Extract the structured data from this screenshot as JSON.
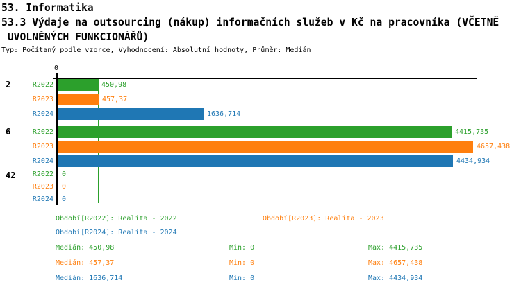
{
  "header": {
    "line1": "53. Informatika",
    "line2": "53.3 Výdaje na outsourcing (nákup) informačních služeb v Kč na pracovníka (VČETNĚ",
    "line3": " UVOLNĚNÝCH FUNKCIONÁŘŮ)",
    "meta": "Typ: Počítaný podle vzorce, Vyhodnocení: Absolutní hodnoty, Průměr: Medián"
  },
  "colors": {
    "r2022": "#2ca02c",
    "r2023": "#ff7f0e",
    "r2024": "#1f77b4",
    "axis": "#000000",
    "background": "#ffffff"
  },
  "chart_data": {
    "type": "bar",
    "orientation": "horizontal",
    "title": "53.3 Výdaje na outsourcing (nákup) informačních služeb v Kč na pracovníka (VČETNĚ UVOLNĚNÝCH FUNKCIONÁŘŮ)",
    "subtitle": "Typ: Počítaný podle vzorce, Vyhodnocení: Absolutní hodnoty, Průměr: Medián",
    "categories": [
      "2",
      "6",
      "42"
    ],
    "series": [
      {
        "name": "R2022",
        "period": "Realita - 2022",
        "color": "#2ca02c",
        "values": [
          450.98,
          4415.735,
          0
        ],
        "value_labels": [
          "450,98",
          "4415,735",
          "0"
        ],
        "median": 450.98,
        "min": 0,
        "max": 4415.735
      },
      {
        "name": "R2023",
        "period": "Realita - 2023",
        "color": "#ff7f0e",
        "values": [
          457.37,
          4657.438,
          0
        ],
        "value_labels": [
          "457,37",
          "4657,438",
          "0"
        ],
        "median": 457.37,
        "min": 0,
        "max": 4657.438
      },
      {
        "name": "R2024",
        "period": "Realita - 2024",
        "color": "#1f77b4",
        "values": [
          1636.714,
          4434.934,
          0
        ],
        "value_labels": [
          "1636,714",
          "4434,934",
          "0"
        ],
        "median": 1636.714,
        "min": 0,
        "max": 4434.934
      }
    ],
    "xlim": [
      0,
      4700
    ],
    "x_tick_labels": [
      "0"
    ],
    "grid": false,
    "median_lines": [
      450.98,
      457.37,
      1636.714
    ],
    "legend_position": "bottom"
  },
  "footer": {
    "legend": [
      {
        "label": "Období[R2022]: Realita - 2022"
      },
      {
        "label": "Období[R2023]: Realita - 2023"
      },
      {
        "label": "Období[R2024]: Realita - 2024"
      }
    ],
    "stats": [
      {
        "median": "Medián: 450,98",
        "min": "Min: 0",
        "max": "Max: 4415,735"
      },
      {
        "median": "Medián: 457,37",
        "min": "Min: 0",
        "max": "Max: 4657,438"
      },
      {
        "median": "Medián: 1636,714",
        "min": "Min: 0",
        "max": "Max: 4434,934"
      }
    ]
  }
}
